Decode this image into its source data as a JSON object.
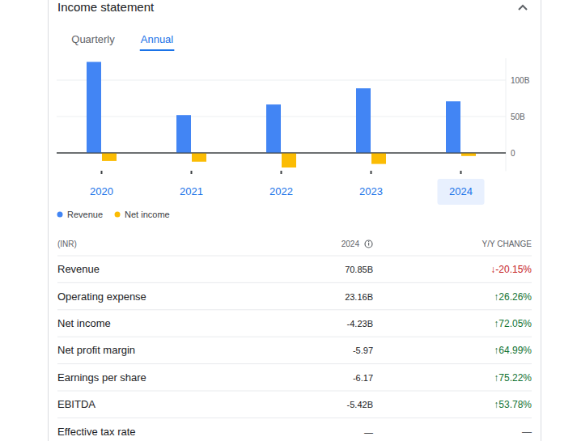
{
  "header": {
    "title": "Income statement",
    "tabs": [
      "Quarterly",
      "Annual"
    ],
    "active_tab": 1
  },
  "chart_data": {
    "type": "bar",
    "categories": [
      "2020",
      "2021",
      "2022",
      "2023",
      "2024"
    ],
    "series": [
      {
        "name": "Revenue",
        "color": "#4285f4",
        "values": [
          125,
          52,
          66.5,
          88.73,
          70.85
        ]
      },
      {
        "name": "Net income",
        "color": "#fbbc04",
        "values": [
          -11,
          -12,
          -20,
          -15.13,
          -4.23
        ]
      }
    ],
    "ylim": [
      -25,
      130
    ],
    "yticks": [
      0,
      {
        "value": 50,
        "label": "50B"
      },
      {
        "value": 100,
        "label": "100B"
      }
    ],
    "grid": true,
    "legend": "bottom-left"
  },
  "table": {
    "columns": [
      "(INR)",
      "2024",
      "Y/Y CHANGE"
    ],
    "rows": [
      [
        "Revenue",
        "70.85B",
        "↓-20.15%"
      ],
      [
        "Operating expense",
        "23.16B",
        "↑26.26%"
      ],
      [
        "Net income",
        "-4.23B",
        "↑72.05%"
      ],
      [
        "Net profit margin",
        "-5.97",
        "↑64.99%"
      ],
      [
        "Earnings per share",
        "-6.17",
        "↑75.22%"
      ],
      [
        "EBITDA",
        "-5.42B",
        "↑53.78%"
      ],
      [
        "Effective tax rate",
        "—",
        "—"
      ]
    ]
  }
}
